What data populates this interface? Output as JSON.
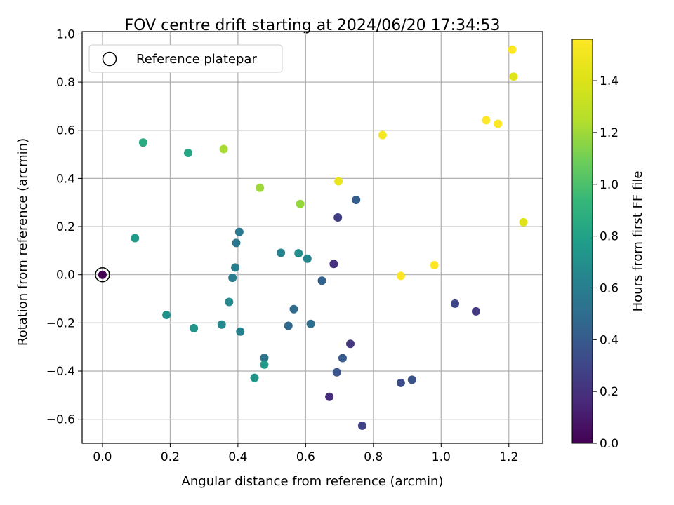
{
  "chart_data": {
    "type": "scatter",
    "title": "FOV centre drift starting at 2024/06/20 17:34:53",
    "xlabel": "Angular distance from reference (arcmin)",
    "ylabel": "Rotation from reference (arcmin)",
    "xlim": [
      -0.06,
      1.3
    ],
    "ylim": [
      -0.7,
      1.01
    ],
    "xticks": [
      "0.0",
      "0.2",
      "0.4",
      "0.6",
      "0.8",
      "1.0",
      "1.2"
    ],
    "yticks": [
      "−0.6",
      "−0.4",
      "−0.2",
      "0.0",
      "0.2",
      "0.4",
      "0.6",
      "0.8",
      "1.0"
    ],
    "grid": true,
    "legend": {
      "position": "top-left",
      "entries": [
        "Reference platepar"
      ]
    },
    "colorbar": {
      "label": "Hours from first FF file",
      "colormap": "viridis",
      "range": [
        0.0,
        1.56
      ],
      "ticks": [
        "0.0",
        "0.2",
        "0.4",
        "0.6",
        "0.8",
        "1.0",
        "1.2",
        "1.4"
      ]
    },
    "reference_point": {
      "x": 0.0,
      "y": 0.0,
      "hours": 0.0
    },
    "points": [
      {
        "x": 0.0,
        "y": 0.0,
        "hours": 0.0
      },
      {
        "x": 0.67,
        "y": -0.507,
        "hours": 0.18
      },
      {
        "x": 0.683,
        "y": 0.045,
        "hours": 0.2
      },
      {
        "x": 0.732,
        "y": -0.287,
        "hours": 0.22
      },
      {
        "x": 1.103,
        "y": -0.152,
        "hours": 0.24
      },
      {
        "x": 0.695,
        "y": 0.238,
        "hours": 0.26
      },
      {
        "x": 0.767,
        "y": -0.627,
        "hours": 0.28
      },
      {
        "x": 1.041,
        "y": -0.12,
        "hours": 0.3
      },
      {
        "x": 0.881,
        "y": -0.449,
        "hours": 0.33
      },
      {
        "x": 0.914,
        "y": -0.436,
        "hours": 0.35
      },
      {
        "x": 0.692,
        "y": -0.405,
        "hours": 0.37
      },
      {
        "x": 0.709,
        "y": -0.346,
        "hours": 0.4
      },
      {
        "x": 0.749,
        "y": 0.311,
        "hours": 0.42
      },
      {
        "x": 0.648,
        "y": -0.025,
        "hours": 0.44
      },
      {
        "x": 0.549,
        "y": -0.212,
        "hours": 0.47
      },
      {
        "x": 0.565,
        "y": -0.143,
        "hours": 0.49
      },
      {
        "x": 0.615,
        "y": -0.204,
        "hours": 0.51
      },
      {
        "x": 0.478,
        "y": -0.345,
        "hours": 0.54
      },
      {
        "x": 0.395,
        "y": 0.132,
        "hours": 0.55
      },
      {
        "x": 0.404,
        "y": 0.178,
        "hours": 0.57
      },
      {
        "x": 0.384,
        "y": -0.013,
        "hours": 0.58
      },
      {
        "x": 0.392,
        "y": 0.03,
        "hours": 0.6
      },
      {
        "x": 0.407,
        "y": -0.236,
        "hours": 0.62
      },
      {
        "x": 0.527,
        "y": 0.091,
        "hours": 0.63
      },
      {
        "x": 0.605,
        "y": 0.067,
        "hours": 0.64
      },
      {
        "x": 0.352,
        "y": -0.207,
        "hours": 0.66
      },
      {
        "x": 0.374,
        "y": -0.113,
        "hours": 0.67
      },
      {
        "x": 0.579,
        "y": 0.089,
        "hours": 0.69
      },
      {
        "x": 0.189,
        "y": -0.167,
        "hours": 0.71
      },
      {
        "x": 0.27,
        "y": -0.222,
        "hours": 0.73
      },
      {
        "x": 0.449,
        "y": -0.428,
        "hours": 0.74
      },
      {
        "x": 0.478,
        "y": -0.373,
        "hours": 0.75
      },
      {
        "x": 0.096,
        "y": 0.152,
        "hours": 0.77
      },
      {
        "x": 0.253,
        "y": 0.506,
        "hours": 0.83
      },
      {
        "x": 0.12,
        "y": 0.549,
        "hours": 0.86
      },
      {
        "x": 0.584,
        "y": 0.294,
        "hours": 1.18
      },
      {
        "x": 0.465,
        "y": 0.361,
        "hours": 1.2
      },
      {
        "x": 0.358,
        "y": 0.522,
        "hours": 1.22
      },
      {
        "x": 1.214,
        "y": 0.823,
        "hours": 1.42
      },
      {
        "x": 1.243,
        "y": 0.218,
        "hours": 1.42
      },
      {
        "x": 0.697,
        "y": 0.388,
        "hours": 1.47
      },
      {
        "x": 0.827,
        "y": 0.58,
        "hours": 1.52
      },
      {
        "x": 1.21,
        "y": 0.935,
        "hours": 1.55
      },
      {
        "x": 1.168,
        "y": 0.627,
        "hours": 1.55
      },
      {
        "x": 1.133,
        "y": 0.642,
        "hours": 1.56
      },
      {
        "x": 0.881,
        "y": -0.005,
        "hours": 1.56
      },
      {
        "x": 0.98,
        "y": 0.04,
        "hours": 1.56
      }
    ]
  }
}
